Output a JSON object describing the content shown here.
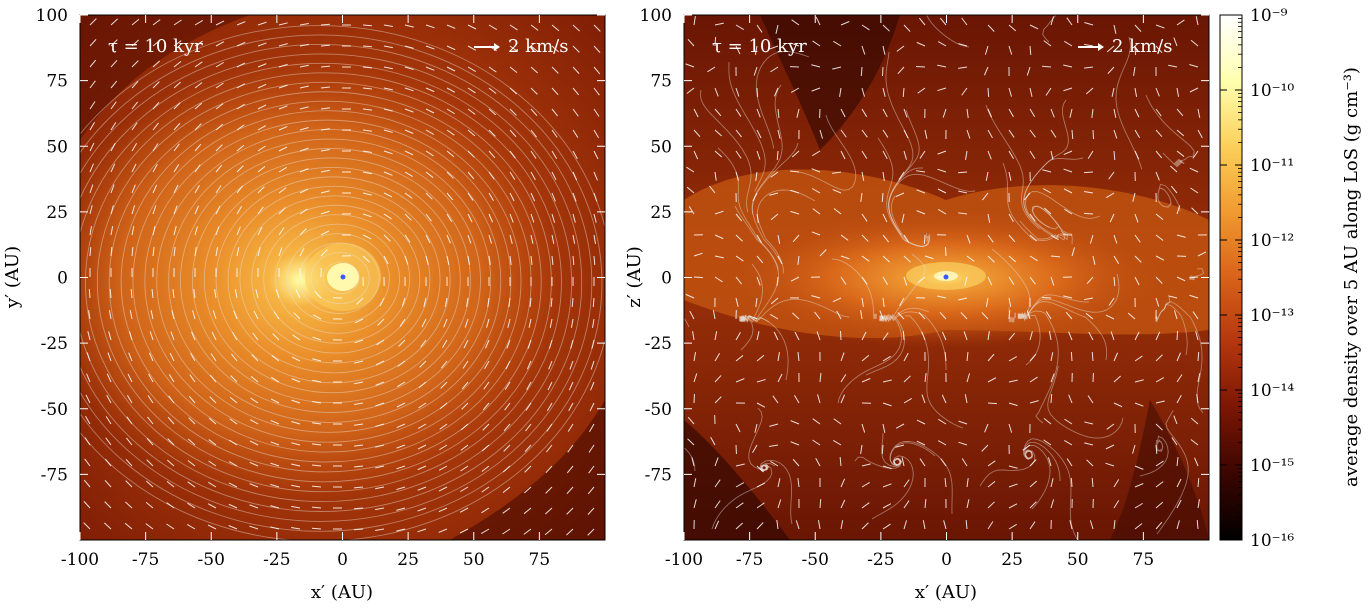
{
  "chart_data": [
    {
      "type": "heatmap",
      "panel": "left",
      "annotation_time": "τ = 10 kyr",
      "annotation_scale": "2 km/s",
      "xlabel": "x′ (AU)",
      "ylabel": "y′ (AU)",
      "xlim": [
        -100,
        100
      ],
      "ylim": [
        -100,
        100
      ],
      "xticks": [
        "-100",
        "-75",
        "-50",
        "-25",
        "0",
        "25",
        "50",
        "75"
      ],
      "yticks": [
        "100",
        "75",
        "50",
        "25",
        "0",
        "-25",
        "-50",
        "-75"
      ],
      "structure": "face-on disk",
      "overlay": "velocity streamlines and arrows"
    },
    {
      "type": "heatmap",
      "panel": "right",
      "annotation_time": "τ = 10 kyr",
      "annotation_scale": "2 km/s",
      "xlabel": "x′ (AU)",
      "ylabel": "z′ (AU)",
      "xlim": [
        -100,
        100
      ],
      "ylim": [
        -100,
        100
      ],
      "xticks": [
        "-100",
        "-75",
        "-50",
        "-25",
        "0",
        "25",
        "50",
        "75"
      ],
      "yticks": [
        "100",
        "75",
        "50",
        "25",
        "0",
        "-25",
        "-50",
        "-75"
      ],
      "structure": "edge-on disk",
      "overlay": "velocity streamlines and arrows"
    }
  ],
  "colorbar": {
    "label": "average density over 5 AU along LoS (g cm⁻³)",
    "scale": "log",
    "range": [
      1e-16,
      1e-09
    ],
    "tick_labels": [
      "10⁻⁹",
      "10⁻¹⁰",
      "10⁻¹¹",
      "10⁻¹²",
      "10⁻¹³",
      "10⁻¹⁴",
      "10⁻¹⁵",
      "10⁻¹⁶"
    ],
    "colormap": [
      "#000000",
      "#3a0500",
      "#7a1604",
      "#b3360e",
      "#d9621a",
      "#f09a30",
      "#fbd05a",
      "#ffffb0",
      "#ffffff"
    ]
  }
}
